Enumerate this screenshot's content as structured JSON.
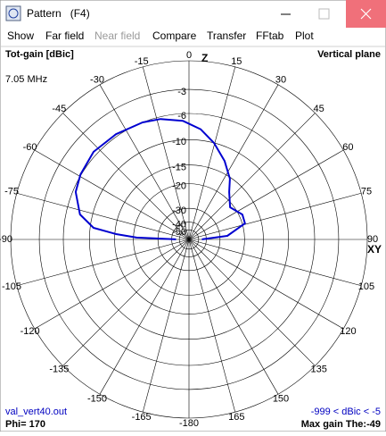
{
  "window": {
    "title": "Pattern   (F4)",
    "menu": [
      {
        "label": "Show",
        "enabled": true
      },
      {
        "label": "Far field",
        "enabled": true
      },
      {
        "label": "Near field",
        "enabled": false
      },
      {
        "label": "Compare",
        "enabled": true
      },
      {
        "label": "Transfer",
        "enabled": true
      },
      {
        "label": "FFtab",
        "enabled": true
      },
      {
        "label": "Plot",
        "enabled": true
      }
    ]
  },
  "plot": {
    "gain_label": "Tot-gain [dBic]",
    "plane": "Vertical plane",
    "frequency": "7.05 MHz",
    "file": "val_vert40.out",
    "phi": "Phi= 170",
    "range": "-999 < dBic < -5",
    "max_gain": "Max gain The:-49",
    "z_axis": "Z",
    "xy_axis": "XY",
    "rings": [
      0,
      -3,
      -6,
      -10,
      -15,
      -20,
      -30,
      -40,
      -50
    ],
    "angles": [
      0,
      15,
      30,
      45,
      60,
      75,
      90,
      105,
      120,
      135,
      150,
      165,
      -180,
      -165,
      -150,
      -135,
      -120,
      -105,
      -90,
      -75,
      -60,
      -45,
      -30,
      -15
    ],
    "trace": {
      "color": "#0000d0",
      "angle": [
        -89.5,
        -88,
        -85.8,
        -83.1,
        -77.1,
        -67.3,
        -59.1,
        -47.5,
        -34.8,
        -21.7,
        -13.3,
        -3,
        6,
        14.5,
        24.4,
        34,
        40.3,
        52,
        65,
        74,
        84.7,
        89.5
      ],
      "gain": [
        -45,
        -21,
        -15.3,
        -10.6,
        -8.0,
        -6.4,
        -5.9,
        -5.5,
        -5.7,
        -6.0,
        -6.3,
        -7.0,
        -8.2,
        -10.0,
        -12.5,
        -15.3,
        -18.1,
        -21.1,
        -19.0,
        -19.2,
        -26.3,
        -45
      ]
    }
  }
}
